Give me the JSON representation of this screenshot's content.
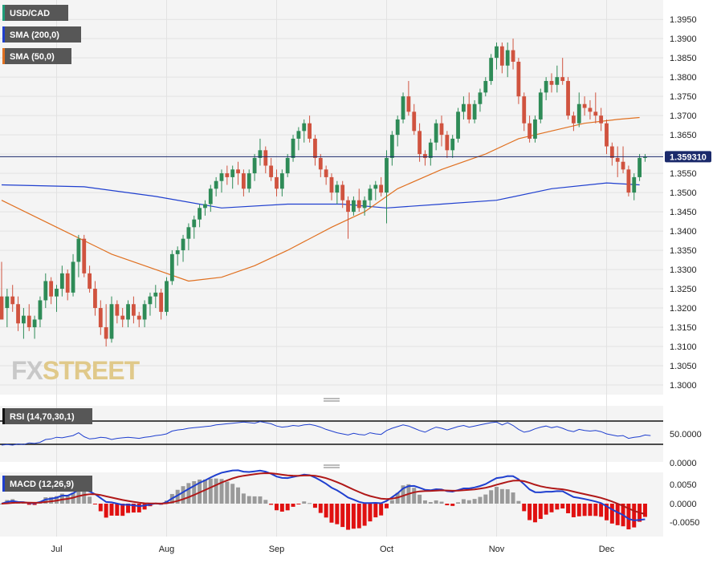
{
  "chart_data": [
    {
      "type": "candlestick",
      "symbol": "USD/CAD",
      "legend": [
        {
          "label": "USD/CAD",
          "color": "#555555"
        },
        {
          "label": "SMA (200,0)",
          "color": "#1f3fcf"
        },
        {
          "label": "SMA (50,0)",
          "color": "#e07020"
        }
      ],
      "last_price_label": "1.359310",
      "last_price": 1.35931,
      "ylim": [
        1.2975,
        1.399
      ],
      "y_ticks": [
        "1.3000",
        "1.3050",
        "1.3100",
        "1.3150",
        "1.3200",
        "1.3250",
        "1.3300",
        "1.3350",
        "1.3400",
        "1.3450",
        "1.3500",
        "1.3550",
        "1.3600",
        "1.3650",
        "1.3700",
        "1.3750",
        "1.3800",
        "1.3850",
        "1.3900",
        "1.3950"
      ],
      "x_labels": [
        {
          "label": "Jul",
          "index": 10
        },
        {
          "label": "Aug",
          "index": 30
        },
        {
          "label": "Sep",
          "index": 50
        },
        {
          "label": "Oct",
          "index": 70
        },
        {
          "label": "Nov",
          "index": 90
        },
        {
          "label": "Dec",
          "index": 110
        }
      ],
      "candles": [
        [
          1.323,
          1.332,
          1.318,
          1.317
        ],
        [
          1.32,
          1.325,
          1.315,
          1.323
        ],
        [
          1.323,
          1.326,
          1.319,
          1.321
        ],
        [
          1.321,
          1.323,
          1.314,
          1.316
        ],
        [
          1.316,
          1.32,
          1.312,
          1.318
        ],
        [
          1.318,
          1.321,
          1.314,
          1.315
        ],
        [
          1.315,
          1.318,
          1.312,
          1.317
        ],
        [
          1.317,
          1.323,
          1.315,
          1.322
        ],
        [
          1.322,
          1.329,
          1.32,
          1.327
        ],
        [
          1.327,
          1.328,
          1.321,
          1.323
        ],
        [
          1.323,
          1.326,
          1.319,
          1.325
        ],
        [
          1.325,
          1.331,
          1.323,
          1.329
        ],
        [
          1.329,
          1.33,
          1.322,
          1.324
        ],
        [
          1.324,
          1.334,
          1.323,
          1.332
        ],
        [
          1.332,
          1.339,
          1.328,
          1.338
        ],
        [
          1.338,
          1.339,
          1.328,
          1.329
        ],
        [
          1.329,
          1.331,
          1.324,
          1.325
        ],
        [
          1.325,
          1.327,
          1.318,
          1.32
        ],
        [
          1.32,
          1.322,
          1.313,
          1.315
        ],
        [
          1.315,
          1.321,
          1.31,
          1.312
        ],
        [
          1.312,
          1.323,
          1.311,
          1.321
        ],
        [
          1.321,
          1.322,
          1.316,
          1.318
        ],
        [
          1.318,
          1.32,
          1.315,
          1.317
        ],
        [
          1.317,
          1.322,
          1.315,
          1.321
        ],
        [
          1.321,
          1.323,
          1.316,
          1.318
        ],
        [
          1.318,
          1.319,
          1.315,
          1.317
        ],
        [
          1.317,
          1.322,
          1.315,
          1.321
        ],
        [
          1.321,
          1.324,
          1.318,
          1.323
        ],
        [
          1.323,
          1.326,
          1.32,
          1.324
        ],
        [
          1.324,
          1.325,
          1.317,
          1.319
        ],
        [
          1.319,
          1.328,
          1.318,
          1.327
        ],
        [
          1.327,
          1.335,
          1.326,
          1.334
        ],
        [
          1.334,
          1.336,
          1.331,
          1.335
        ],
        [
          1.335,
          1.339,
          1.332,
          1.338
        ],
        [
          1.338,
          1.342,
          1.335,
          1.341
        ],
        [
          1.341,
          1.344,
          1.338,
          1.343
        ],
        [
          1.343,
          1.347,
          1.341,
          1.346
        ],
        [
          1.346,
          1.348,
          1.344,
          1.347
        ],
        [
          1.347,
          1.352,
          1.345,
          1.351
        ],
        [
          1.351,
          1.354,
          1.349,
          1.353
        ],
        [
          1.353,
          1.356,
          1.35,
          1.355
        ],
        [
          1.355,
          1.357,
          1.352,
          1.354
        ],
        [
          1.354,
          1.357,
          1.351,
          1.356
        ],
        [
          1.356,
          1.358,
          1.352,
          1.355
        ],
        [
          1.355,
          1.356,
          1.349,
          1.351
        ],
        [
          1.351,
          1.356,
          1.35,
          1.355
        ],
        [
          1.355,
          1.36,
          1.353,
          1.359
        ],
        [
          1.359,
          1.364,
          1.357,
          1.361
        ],
        [
          1.361,
          1.362,
          1.355,
          1.357
        ],
        [
          1.357,
          1.359,
          1.353,
          1.354
        ],
        [
          1.354,
          1.356,
          1.349,
          1.351
        ],
        [
          1.351,
          1.356,
          1.349,
          1.355
        ],
        [
          1.355,
          1.36,
          1.354,
          1.359
        ],
        [
          1.359,
          1.365,
          1.358,
          1.364
        ],
        [
          1.364,
          1.367,
          1.361,
          1.366
        ],
        [
          1.366,
          1.369,
          1.363,
          1.368
        ],
        [
          1.368,
          1.37,
          1.363,
          1.364
        ],
        [
          1.364,
          1.365,
          1.357,
          1.359
        ],
        [
          1.359,
          1.36,
          1.354,
          1.356
        ],
        [
          1.356,
          1.357,
          1.352,
          1.354
        ],
        [
          1.354,
          1.355,
          1.348,
          1.35
        ],
        [
          1.35,
          1.353,
          1.347,
          1.352
        ],
        [
          1.352,
          1.353,
          1.346,
          1.348
        ],
        [
          1.348,
          1.349,
          1.338,
          1.345
        ],
        [
          1.345,
          1.349,
          1.344,
          1.348
        ],
        [
          1.348,
          1.351,
          1.345,
          1.346
        ],
        [
          1.346,
          1.349,
          1.344,
          1.348
        ],
        [
          1.348,
          1.352,
          1.346,
          1.351
        ],
        [
          1.351,
          1.353,
          1.348,
          1.352
        ],
        [
          1.352,
          1.354,
          1.349,
          1.35
        ],
        [
          1.35,
          1.361,
          1.342,
          1.359
        ],
        [
          1.359,
          1.366,
          1.357,
          1.365
        ],
        [
          1.365,
          1.37,
          1.362,
          1.369
        ],
        [
          1.369,
          1.376,
          1.368,
          1.375
        ],
        [
          1.375,
          1.379,
          1.37,
          1.371
        ],
        [
          1.371,
          1.373,
          1.365,
          1.366
        ],
        [
          1.366,
          1.368,
          1.358,
          1.36
        ],
        [
          1.36,
          1.361,
          1.357,
          1.359
        ],
        [
          1.359,
          1.364,
          1.357,
          1.363
        ],
        [
          1.363,
          1.369,
          1.361,
          1.368
        ],
        [
          1.368,
          1.37,
          1.362,
          1.365
        ],
        [
          1.365,
          1.366,
          1.359,
          1.361
        ],
        [
          1.361,
          1.365,
          1.359,
          1.364
        ],
        [
          1.364,
          1.372,
          1.363,
          1.371
        ],
        [
          1.371,
          1.375,
          1.369,
          1.373
        ],
        [
          1.373,
          1.376,
          1.368,
          1.369
        ],
        [
          1.369,
          1.374,
          1.368,
          1.373
        ],
        [
          1.373,
          1.377,
          1.371,
          1.376
        ],
        [
          1.376,
          1.38,
          1.375,
          1.379
        ],
        [
          1.379,
          1.386,
          1.378,
          1.385
        ],
        [
          1.385,
          1.389,
          1.382,
          1.388
        ],
        [
          1.388,
          1.389,
          1.381,
          1.383
        ],
        [
          1.383,
          1.389,
          1.38,
          1.387
        ],
        [
          1.387,
          1.39,
          1.382,
          1.384
        ],
        [
          1.384,
          1.385,
          1.373,
          1.375
        ],
        [
          1.375,
          1.376,
          1.366,
          1.368
        ],
        [
          1.368,
          1.37,
          1.363,
          1.364
        ],
        [
          1.364,
          1.37,
          1.363,
          1.369
        ],
        [
          1.369,
          1.377,
          1.368,
          1.376
        ],
        [
          1.376,
          1.38,
          1.374,
          1.379
        ],
        [
          1.379,
          1.381,
          1.376,
          1.378
        ],
        [
          1.378,
          1.383,
          1.376,
          1.38
        ],
        [
          1.38,
          1.385,
          1.378,
          1.379
        ],
        [
          1.379,
          1.38,
          1.369,
          1.37
        ],
        [
          1.37,
          1.371,
          1.366,
          1.368
        ],
        [
          1.368,
          1.376,
          1.367,
          1.373
        ],
        [
          1.373,
          1.375,
          1.37,
          1.372
        ],
        [
          1.372,
          1.374,
          1.369,
          1.371
        ],
        [
          1.371,
          1.376,
          1.368,
          1.37
        ],
        [
          1.37,
          1.372,
          1.366,
          1.368
        ],
        [
          1.368,
          1.369,
          1.36,
          1.362
        ],
        [
          1.362,
          1.363,
          1.357,
          1.359
        ],
        [
          1.359,
          1.362,
          1.354,
          1.358
        ],
        [
          1.358,
          1.362,
          1.355,
          1.356
        ],
        [
          1.356,
          1.357,
          1.349,
          1.35
        ],
        [
          1.35,
          1.355,
          1.348,
          1.354
        ],
        [
          1.354,
          1.36,
          1.353,
          1.359
        ],
        [
          1.359,
          1.36,
          1.358,
          1.3593
        ]
      ],
      "sma200": [
        [
          0,
          1.352
        ],
        [
          15,
          1.3515
        ],
        [
          28,
          1.349
        ],
        [
          40,
          1.346
        ],
        [
          52,
          1.347
        ],
        [
          62,
          1.347
        ],
        [
          70,
          1.346
        ],
        [
          80,
          1.347
        ],
        [
          90,
          1.348
        ],
        [
          100,
          1.351
        ],
        [
          110,
          1.3525
        ],
        [
          116,
          1.352
        ]
      ],
      "sma50": [
        [
          0,
          1.348
        ],
        [
          10,
          1.341
        ],
        [
          20,
          1.334
        ],
        [
          28,
          1.33
        ],
        [
          34,
          1.327
        ],
        [
          40,
          1.328
        ],
        [
          46,
          1.331
        ],
        [
          52,
          1.335
        ],
        [
          60,
          1.341
        ],
        [
          66,
          1.345
        ],
        [
          72,
          1.351
        ],
        [
          80,
          1.356
        ],
        [
          88,
          1.36
        ],
        [
          94,
          1.364
        ],
        [
          100,
          1.366
        ],
        [
          106,
          1.368
        ],
        [
          112,
          1.369
        ],
        [
          116,
          1.3695
        ]
      ]
    },
    {
      "type": "line",
      "title": "RSI (14,70,30,1)",
      "y_ticks": [
        "50.0000",
        "0.0000"
      ],
      "values": [
        30,
        31,
        30,
        32,
        31,
        34,
        33,
        35,
        40,
        41,
        44,
        43,
        45,
        47,
        52,
        45,
        41,
        42,
        44,
        43,
        40,
        42,
        43,
        44,
        43,
        42,
        44,
        45,
        47,
        48,
        50,
        55,
        57,
        58,
        60,
        61,
        62,
        63,
        64,
        66,
        67,
        68,
        69,
        70,
        71,
        70,
        69,
        72,
        70,
        68,
        64,
        62,
        63,
        65,
        64,
        66,
        67,
        65,
        62,
        58,
        55,
        52,
        50,
        48,
        51,
        49,
        48,
        52,
        50,
        49,
        56,
        60,
        63,
        66,
        64,
        60,
        56,
        53,
        58,
        62,
        60,
        57,
        60,
        63,
        65,
        62,
        64,
        66,
        68,
        70,
        71,
        66,
        70,
        65,
        58,
        53,
        55,
        59,
        62,
        64,
        61,
        63,
        60,
        56,
        54,
        58,
        56,
        55,
        56,
        54,
        50,
        48,
        46,
        47,
        42,
        44,
        45,
        48,
        47
      ]
    },
    {
      "type": "bar",
      "title": "MACD (12,26,9)",
      "y_ticks": [
        "0.0050",
        "0.0000",
        "-0.0050"
      ]
    }
  ]
}
